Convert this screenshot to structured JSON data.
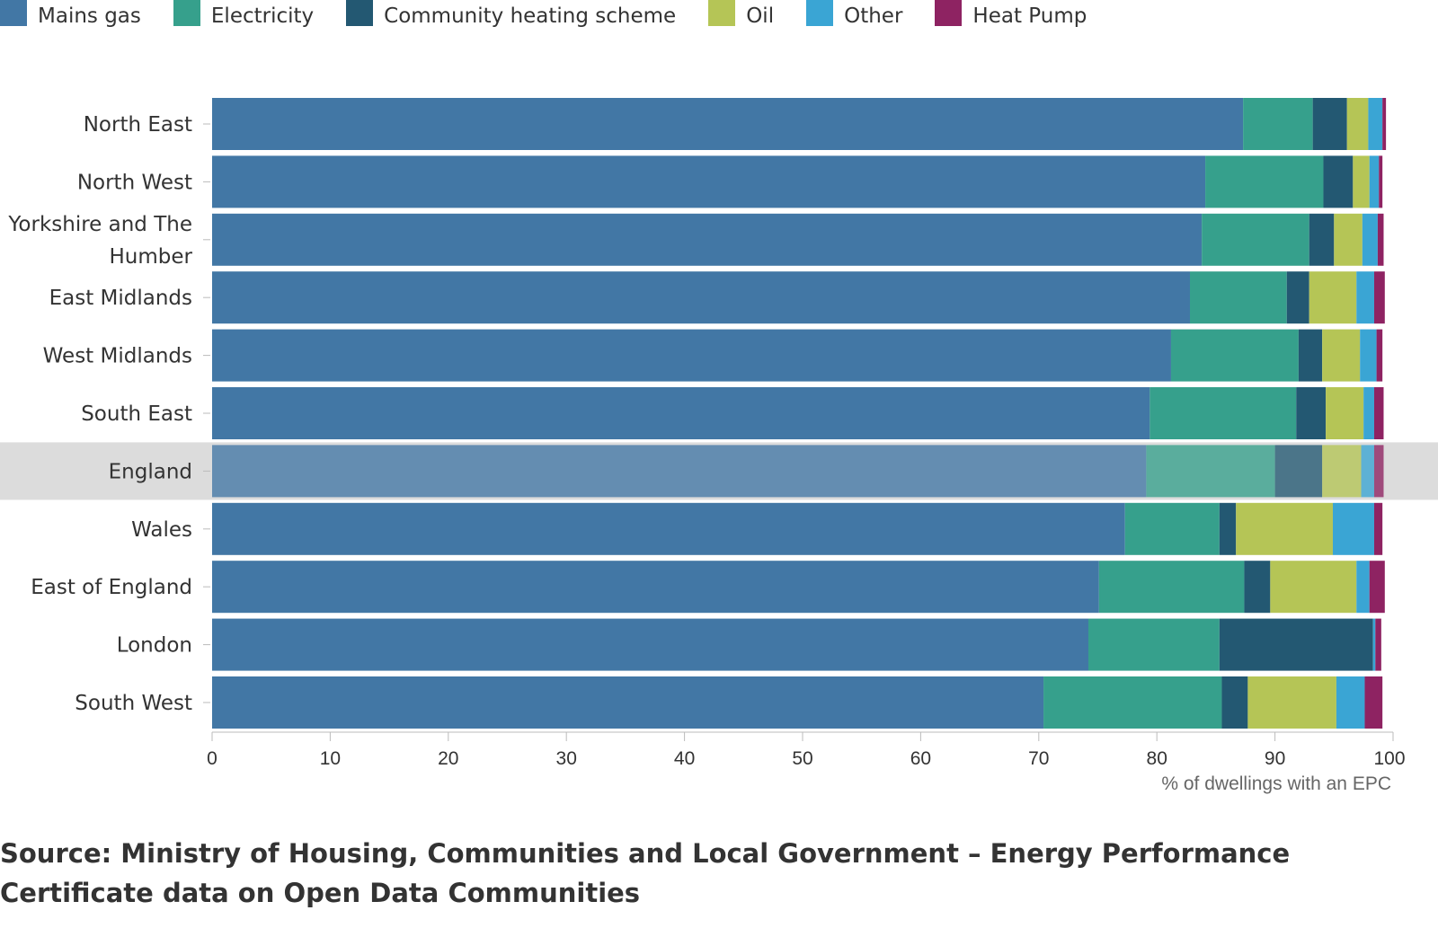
{
  "chart_data": {
    "type": "bar",
    "orientation": "horizontal",
    "stacked": true,
    "xlabel": "% of dwellings with an EPC",
    "xlim": [
      0,
      100
    ],
    "xticks": [
      0,
      10,
      20,
      30,
      40,
      50,
      60,
      70,
      80,
      90,
      100
    ],
    "categories": [
      "North East",
      "North West",
      "Yorkshire and The Humber",
      "East Midlands",
      "West Midlands",
      "South East",
      "England",
      "Wales",
      "East of England",
      "London",
      "South West"
    ],
    "highlighted_category": "England",
    "series": [
      {
        "name": "Mains gas",
        "color": "#4277a5",
        "values": [
          87.3,
          84.1,
          83.8,
          82.8,
          81.2,
          79.4,
          79.1,
          77.3,
          75.1,
          74.2,
          70.4
        ]
      },
      {
        "name": "Electricity",
        "color": "#36a08c",
        "values": [
          5.9,
          10.0,
          9.1,
          8.2,
          10.8,
          12.4,
          10.9,
          8.0,
          12.3,
          11.1,
          15.1
        ]
      },
      {
        "name": "Community heating scheme",
        "color": "#235872",
        "values": [
          2.9,
          2.5,
          2.1,
          1.9,
          2.0,
          2.5,
          4.0,
          1.4,
          2.2,
          13.0,
          2.2
        ]
      },
      {
        "name": "Oil",
        "color": "#b5c556",
        "values": [
          1.8,
          1.4,
          2.4,
          4.0,
          3.2,
          3.2,
          3.3,
          8.2,
          7.3,
          0.0,
          7.5
        ]
      },
      {
        "name": "Other",
        "color": "#3aa5d4",
        "values": [
          1.2,
          0.8,
          1.3,
          1.5,
          1.4,
          0.9,
          1.1,
          3.5,
          1.1,
          0.2,
          2.4
        ]
      },
      {
        "name": "Heat Pump",
        "color": "#8e2362",
        "values": [
          0.3,
          0.3,
          0.5,
          0.9,
          0.5,
          0.8,
          0.8,
          0.7,
          1.3,
          0.5,
          1.5
        ]
      }
    ]
  },
  "source": "Source: Ministry of Housing, Communities and Local Government – Energy Performance Certificate data on Open Data Communities"
}
